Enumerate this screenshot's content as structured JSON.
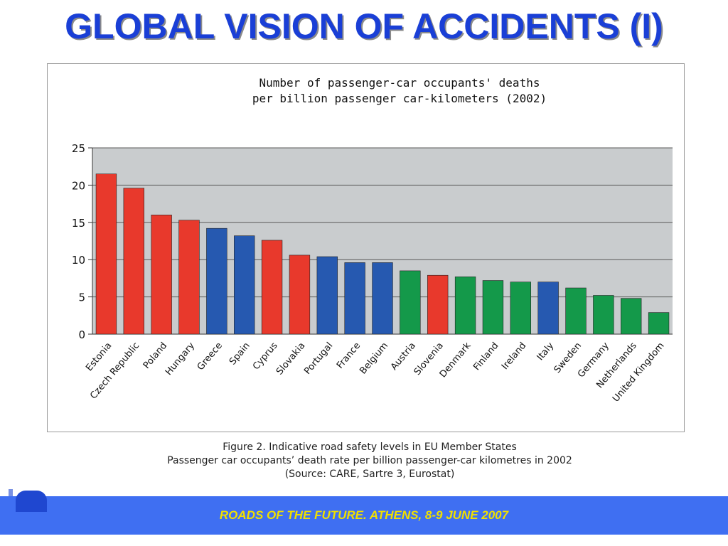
{
  "slide": {
    "title": "GLOBAL VISION OF ACCIDENTS (I)",
    "footer": "ROADS OF THE FUTURE. ATHENS, 8-9 JUNE 2007"
  },
  "chart_data": {
    "type": "bar",
    "title_line1": "Number of passenger-car occupants' deaths",
    "title_line2": "per billion passenger car-kilometers (2002)",
    "xlabel": "",
    "ylabel": "",
    "ylim": [
      0,
      25
    ],
    "yticks": [
      0,
      5,
      10,
      15,
      20,
      25
    ],
    "grid": true,
    "categories": [
      "Estonia",
      "Czech Republic",
      "Poland",
      "Hungary",
      "Greece",
      "Spain",
      "Cyprus",
      "Slovakia",
      "Portugal",
      "France",
      "Belgium",
      "Austria",
      "Slovenia",
      "Denmark",
      "Finland",
      "Ireland",
      "Italy",
      "Sweden",
      "Germany",
      "Netherlands",
      "United Kingdom"
    ],
    "values": [
      21.5,
      19.6,
      16.0,
      15.3,
      14.2,
      13.2,
      12.6,
      10.6,
      10.4,
      9.6,
      9.6,
      8.5,
      7.9,
      7.7,
      7.2,
      7.0,
      7.0,
      6.2,
      5.2,
      4.8,
      2.9
    ],
    "bar_colors": [
      "#e8392c",
      "#e8392c",
      "#e8392c",
      "#e8392c",
      "#2659b0",
      "#2659b0",
      "#e8392c",
      "#e8392c",
      "#2659b0",
      "#2659b0",
      "#2659b0",
      "#14994a",
      "#e8392c",
      "#14994a",
      "#14994a",
      "#14994a",
      "#2659b0",
      "#14994a",
      "#14994a",
      "#14994a",
      "#14994a"
    ],
    "plot_background": "#c9ccce",
    "caption_lines": [
      "Figure 2.  Indicative road safety levels in EU Member States",
      "Passenger car occupants’ death rate per billion passenger-car kilometres in 2002",
      "(Source: CARE, Sartre 3, Eurostat)"
    ]
  }
}
